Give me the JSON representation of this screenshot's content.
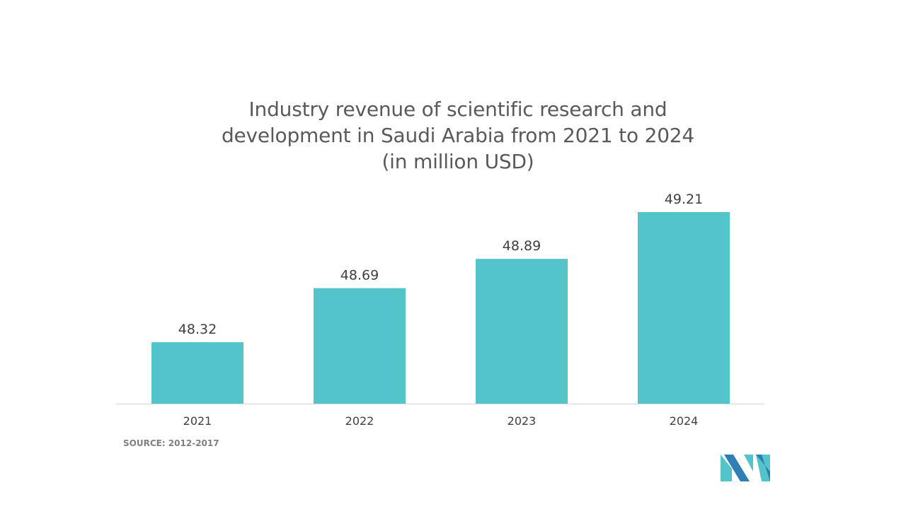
{
  "chart_data": {
    "type": "bar",
    "title_lines": [
      "Industry revenue of scientific research and",
      "development in Saudi Arabia from 2021 to 2024",
      "(in million USD)"
    ],
    "categories": [
      "2021",
      "2022",
      "2023",
      "2024"
    ],
    "values": [
      48.32,
      48.69,
      48.89,
      49.21
    ],
    "value_labels": [
      "48.32",
      "48.69",
      "48.89",
      "49.21"
    ],
    "xlabel": "",
    "ylabel": "",
    "grid": false,
    "y_axis_visible": false,
    "bar_color": "#52C4CA"
  },
  "source": "SOURCE: 2012-2017",
  "logo": {
    "icon": "mordor-intelligence-logo-icon",
    "colors": [
      "#52C4CA",
      "#2F7FB6"
    ]
  }
}
